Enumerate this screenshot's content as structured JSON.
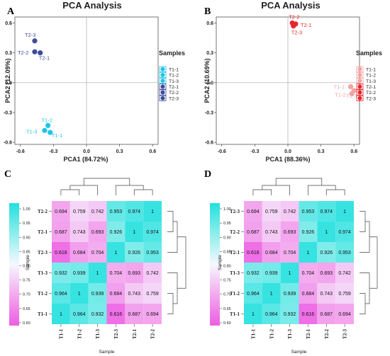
{
  "figure": {
    "panel_letters": [
      "A",
      "B",
      "C",
      "D"
    ]
  },
  "chart_data": [
    {
      "type": "scatter",
      "panel": "A",
      "title": "PCA Analysis",
      "xlabel": "PCA1 (84.72%)",
      "ylabel": "PCA2 (12.09%)",
      "xlim": [
        -0.65,
        0.65
      ],
      "ylim": [
        -0.62,
        0.66
      ],
      "xticks": [
        "-0.6",
        "-0.3",
        "0.0",
        "0.3",
        "0.6"
      ],
      "xtick_values": [
        -0.6,
        -0.3,
        0.0,
        0.3,
        0.6
      ],
      "yticks": [
        "0.6",
        "0.3",
        "0.0",
        "-0.3",
        "-0.6"
      ],
      "ytick_values": [
        0.6,
        0.3,
        0.0,
        -0.3,
        -0.6
      ],
      "legend_title": "Samples",
      "legend_position": "right",
      "colors": {
        "T1": "#1fc4e6",
        "T2": "#3f4c9a"
      },
      "points": [
        {
          "label": "T1-1",
          "group": "T1",
          "x": -0.33,
          "y": -0.5
        },
        {
          "label": "T1-2",
          "group": "T1",
          "x": -0.35,
          "y": -0.43
        },
        {
          "label": "T1-3",
          "group": "T1",
          "x": -0.38,
          "y": -0.48
        },
        {
          "label": "T2-1",
          "group": "T2",
          "x": -0.42,
          "y": 0.3
        },
        {
          "label": "T2-2",
          "group": "T2",
          "x": -0.47,
          "y": 0.31
        },
        {
          "label": "T2-3",
          "group": "T2",
          "x": -0.47,
          "y": 0.42
        }
      ]
    },
    {
      "type": "scatter",
      "panel": "B",
      "title": "PCA Analysis",
      "xlabel": "PCA1 (88.36%)",
      "ylabel": "PCA2 (10.69%)",
      "xlim": [
        -0.65,
        0.65
      ],
      "ylim": [
        -0.62,
        0.66
      ],
      "xticks": [
        "-0.6",
        "-0.3",
        "0.0",
        "0.3",
        "0.6"
      ],
      "xtick_values": [
        -0.6,
        -0.3,
        0.0,
        0.3,
        0.6
      ],
      "yticks": [
        "0.6",
        "0.3",
        "0.0",
        "-0.3",
        "-0.6"
      ],
      "ytick_values": [
        0.6,
        0.3,
        0.0,
        -0.3,
        -0.6
      ],
      "legend_title": "Samples",
      "legend_position": "right",
      "colors": {
        "T1": "#f2a3a3",
        "T2": "#e8262b"
      },
      "points": [
        {
          "label": "T1-1",
          "group": "T1",
          "x": 0.57,
          "y": -0.04
        },
        {
          "label": "T1-2",
          "group": "T1",
          "x": 0.58,
          "y": -0.11
        },
        {
          "label": "T1-3",
          "group": "T1",
          "x": 0.6,
          "y": -0.08
        },
        {
          "label": "T2-1",
          "group": "T2",
          "x": 0.07,
          "y": 0.59
        },
        {
          "label": "T2-2",
          "group": "T2",
          "x": 0.04,
          "y": 0.6
        },
        {
          "label": "T2-3",
          "group": "T2",
          "x": 0.05,
          "y": 0.57
        }
      ]
    },
    {
      "type": "heatmap",
      "panel": "C",
      "xlabel": "Sample",
      "ylabel": "Sample",
      "colorbar_ticks": [
        "1.00",
        "0.95",
        "0.90",
        "0.85",
        "0.80",
        "0.75",
        "0.70",
        "0.65",
        "0.60"
      ],
      "colorbar_tick_values": [
        1.0,
        0.95,
        0.9,
        0.85,
        0.8,
        0.75,
        0.7,
        0.65,
        0.6
      ],
      "colorbar_range": [
        0.59,
        1.02
      ],
      "columns": [
        "T1-1",
        "T1-2",
        "T1-3",
        "T2-3",
        "T2-1",
        "T2-2"
      ],
      "rows": [
        "T2-2",
        "T2-1",
        "T2-3",
        "T1-3",
        "T1-2",
        "T1-1"
      ],
      "values": [
        [
          "0.694",
          "0.759",
          "0.742",
          "0.953",
          "0.974",
          "1"
        ],
        [
          "0.687",
          "0.743",
          "0.693",
          "0.926",
          "1",
          "0.974"
        ],
        [
          "0.616",
          "0.684",
          "0.704",
          "1",
          "0.926",
          "0.953"
        ],
        [
          "0.932",
          "0.939",
          "1",
          "0.704",
          "0.693",
          "0.742"
        ],
        [
          "0.964",
          "1",
          "0.939",
          "0.684",
          "0.743",
          "0.759"
        ],
        [
          "1",
          "0.964",
          "0.932",
          "0.616",
          "0.687",
          "0.694"
        ]
      ]
    },
    {
      "type": "heatmap",
      "panel": "D",
      "xlabel": "Sample",
      "ylabel": "Sample",
      "colorbar_ticks": [
        "1.00",
        "0.95",
        "0.90",
        "0.85",
        "0.80",
        "0.75",
        "0.70",
        "0.65",
        "0.60"
      ],
      "colorbar_tick_values": [
        1.0,
        0.95,
        0.9,
        0.85,
        0.8,
        0.75,
        0.7,
        0.65,
        0.6
      ],
      "colorbar_range": [
        0.59,
        1.02
      ],
      "columns": [
        "T1-1",
        "T1-2",
        "T1-3",
        "T2-1",
        "T2-2",
        "T2-3"
      ],
      "rows": [
        "T2-3",
        "T2-2",
        "T2-1",
        "T1-3",
        "T1-2",
        "T1-1"
      ],
      "values": [
        [
          "0.694",
          "0.759",
          "0.742",
          "0.953",
          "0.974",
          "1"
        ],
        [
          "0.687",
          "0.743",
          "0.693",
          "0.926",
          "1",
          "0.974"
        ],
        [
          "0.616",
          "0.684",
          "0.704",
          "1",
          "0.926",
          "0.953"
        ],
        [
          "0.932",
          "0.939",
          "1",
          "0.704",
          "0.693",
          "0.742"
        ],
        [
          "0.964",
          "1",
          "0.939",
          "0.684",
          "0.743",
          "0.759"
        ],
        [
          "1",
          "0.964",
          "0.932",
          "0.616",
          "0.687",
          "0.694"
        ]
      ]
    }
  ]
}
